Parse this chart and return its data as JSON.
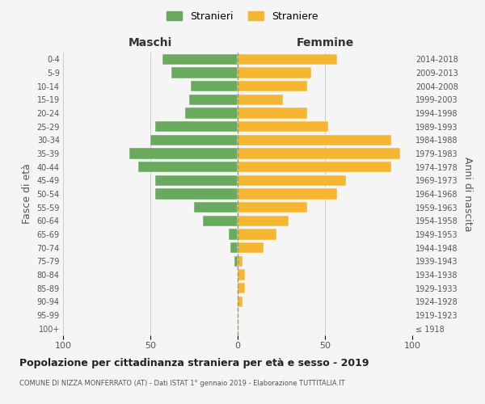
{
  "age_groups": [
    "100+",
    "95-99",
    "90-94",
    "85-89",
    "80-84",
    "75-79",
    "70-74",
    "65-69",
    "60-64",
    "55-59",
    "50-54",
    "45-49",
    "40-44",
    "35-39",
    "30-34",
    "25-29",
    "20-24",
    "15-19",
    "10-14",
    "5-9",
    "0-4"
  ],
  "birth_years": [
    "≤ 1918",
    "1919-1923",
    "1924-1928",
    "1929-1933",
    "1934-1938",
    "1939-1943",
    "1944-1948",
    "1949-1953",
    "1954-1958",
    "1959-1963",
    "1964-1968",
    "1969-1973",
    "1974-1978",
    "1979-1983",
    "1984-1988",
    "1989-1993",
    "1994-1998",
    "1999-2003",
    "2004-2008",
    "2009-2013",
    "2014-2018"
  ],
  "maschi": [
    0,
    0,
    0,
    0,
    0,
    2,
    4,
    5,
    20,
    25,
    47,
    47,
    57,
    62,
    50,
    47,
    30,
    28,
    27,
    38,
    43
  ],
  "femmine": [
    0,
    0,
    3,
    4,
    4,
    3,
    15,
    22,
    29,
    40,
    57,
    62,
    88,
    93,
    88,
    52,
    40,
    26,
    40,
    42,
    57
  ],
  "maschi_color": "#6aaa5e",
  "femmine_color": "#f5b731",
  "background_color": "#f5f5f5",
  "grid_color": "#cccccc",
  "title": "Popolazione per cittadinanza straniera per età e sesso - 2019",
  "subtitle": "COMUNE DI NIZZA MONFERRATO (AT) - Dati ISTAT 1° gennaio 2019 - Elaborazione TUTTITALIA.IT",
  "xlabel_left": "Maschi",
  "xlabel_right": "Femmine",
  "ylabel_left": "Fasce di età",
  "ylabel_right": "Anni di nascita",
  "legend_maschi": "Stranieri",
  "legend_femmine": "Straniere",
  "xlim": 100,
  "bar_height": 0.8
}
